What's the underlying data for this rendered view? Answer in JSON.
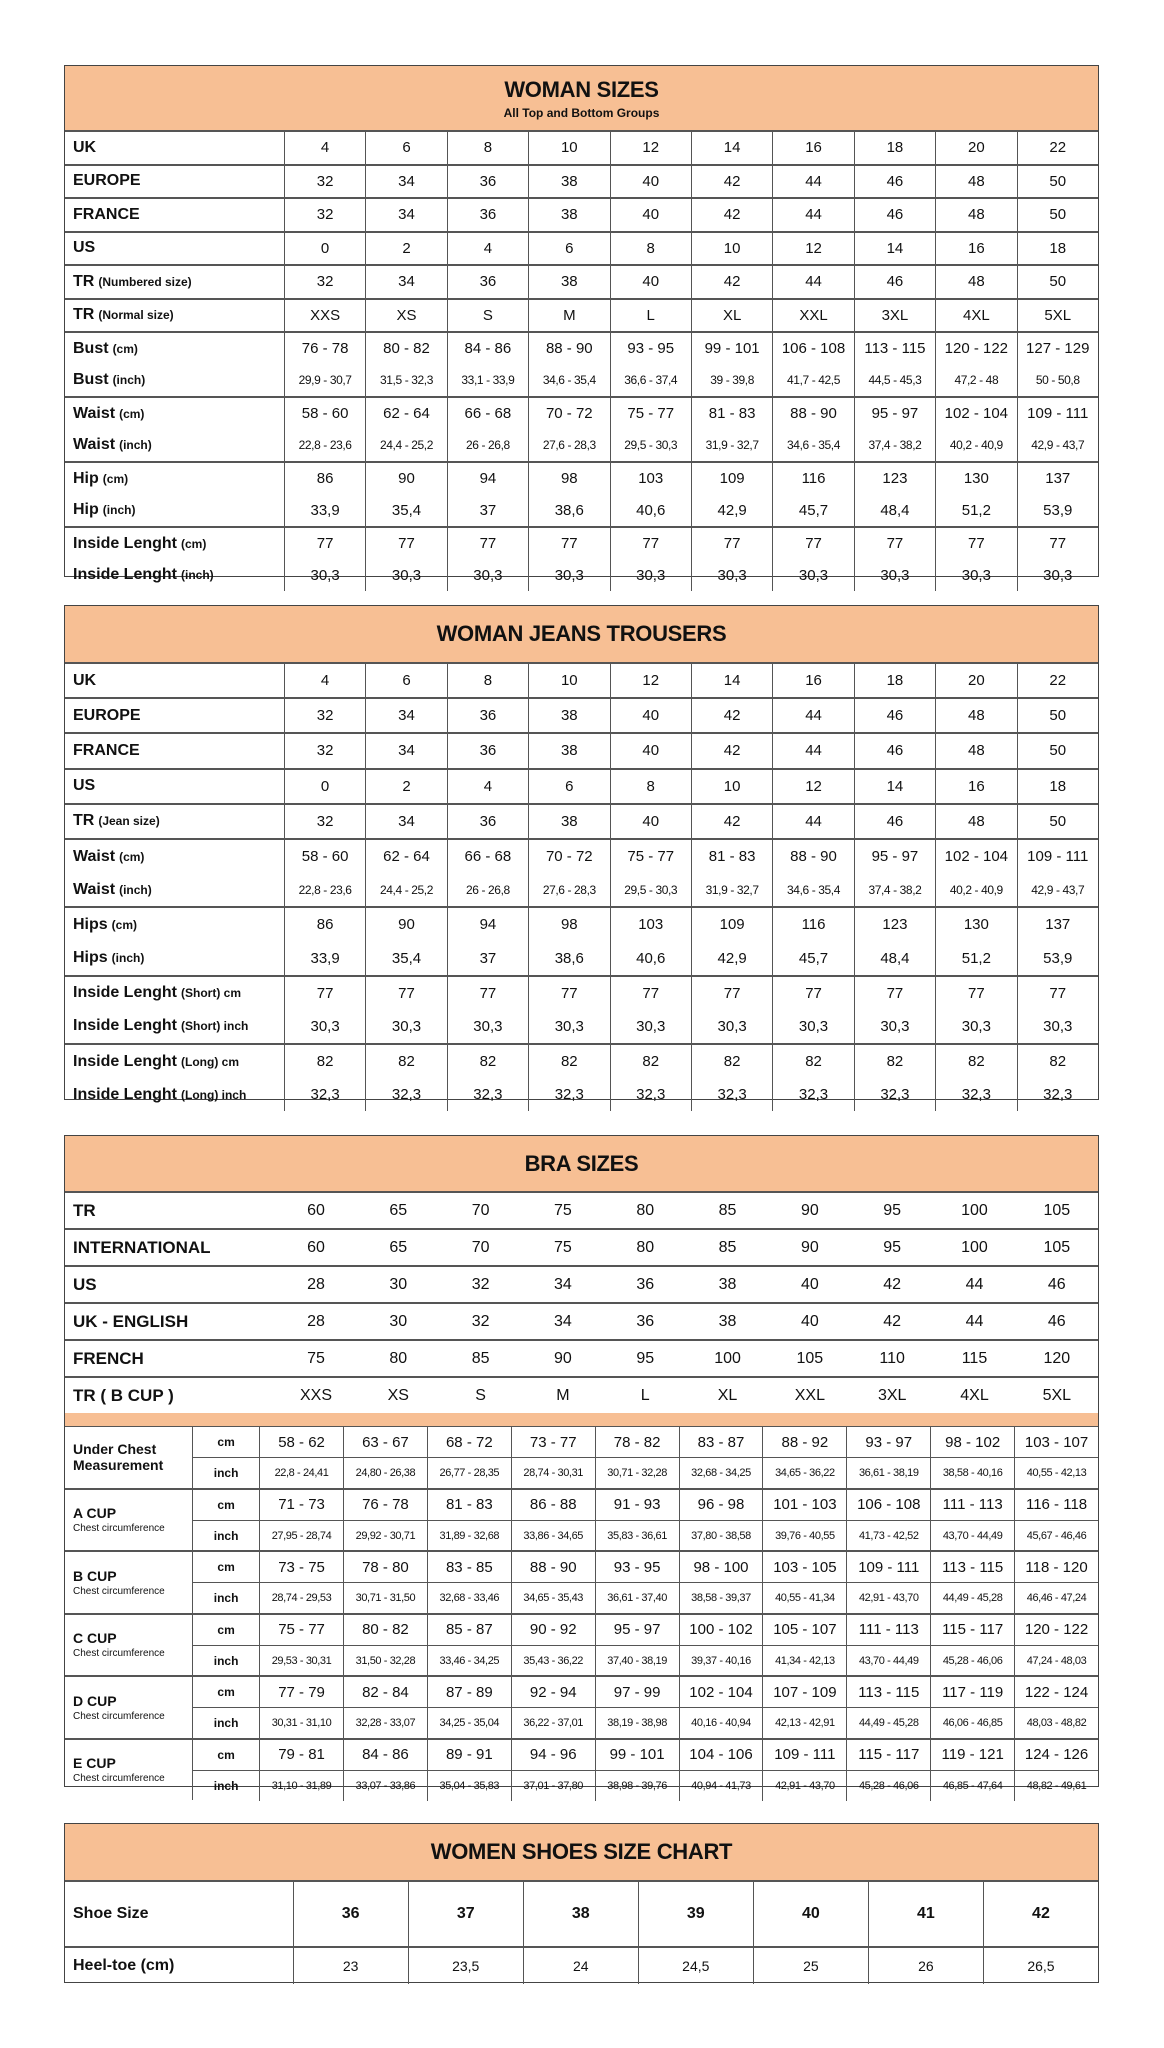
{
  "woman_sizes": {
    "title": "WOMAN SIZES",
    "subtitle": "All Top and Bottom Groups",
    "groups": [
      [
        {
          "label": "UK",
          "sub": "",
          "values": [
            "4",
            "6",
            "8",
            "10",
            "12",
            "14",
            "16",
            "18",
            "20",
            "22"
          ]
        }
      ],
      [
        {
          "label": "EUROPE",
          "sub": "",
          "values": [
            "32",
            "34",
            "36",
            "38",
            "40",
            "42",
            "44",
            "46",
            "48",
            "50"
          ]
        }
      ],
      [
        {
          "label": "FRANCE",
          "sub": "",
          "values": [
            "32",
            "34",
            "36",
            "38",
            "40",
            "42",
            "44",
            "46",
            "48",
            "50"
          ]
        }
      ],
      [
        {
          "label": "US",
          "sub": "",
          "values": [
            "0",
            "2",
            "4",
            "6",
            "8",
            "10",
            "12",
            "14",
            "16",
            "18"
          ]
        }
      ],
      [
        {
          "label": "TR",
          "sub": "(Numbered size)",
          "values": [
            "32",
            "34",
            "36",
            "38",
            "40",
            "42",
            "44",
            "46",
            "48",
            "50"
          ]
        }
      ],
      [
        {
          "label": "TR",
          "sub": "(Normal size)",
          "values": [
            "XXS",
            "XS",
            "S",
            "M",
            "L",
            "XL",
            "XXL",
            "3XL",
            "4XL",
            "5XL"
          ]
        }
      ],
      [
        {
          "label": "Bust",
          "sub": "(cm)",
          "values": [
            "76 - 78",
            "80 - 82",
            "84 - 86",
            "88 - 90",
            "93 - 95",
            "99 - 101",
            "106 - 108",
            "113 - 115",
            "120 - 122",
            "127 - 129"
          ]
        },
        {
          "label": "Bust",
          "sub": "(inch)",
          "small": true,
          "values": [
            "29,9 - 30,7",
            "31,5 - 32,3",
            "33,1 - 33,9",
            "34,6 - 35,4",
            "36,6 - 37,4",
            "39 - 39,8",
            "41,7 - 42,5",
            "44,5 - 45,3",
            "47,2 - 48",
            "50 - 50,8"
          ]
        }
      ],
      [
        {
          "label": "Waist",
          "sub": "(cm)",
          "values": [
            "58 - 60",
            "62 - 64",
            "66 - 68",
            "70 - 72",
            "75 - 77",
            "81 - 83",
            "88 - 90",
            "95 - 97",
            "102 - 104",
            "109 - 111"
          ]
        },
        {
          "label": "Waist",
          "sub": "(inch)",
          "small": true,
          "values": [
            "22,8 - 23,6",
            "24,4 - 25,2",
            "26 - 26,8",
            "27,6 - 28,3",
            "29,5 - 30,3",
            "31,9 - 32,7",
            "34,6 - 35,4",
            "37,4 - 38,2",
            "40,2 - 40,9",
            "42,9 - 43,7"
          ]
        }
      ],
      [
        {
          "label": "Hip",
          "sub": "(cm)",
          "values": [
            "86",
            "90",
            "94",
            "98",
            "103",
            "109",
            "116",
            "123",
            "130",
            "137"
          ]
        },
        {
          "label": "Hip",
          "sub": "(inch)",
          "values": [
            "33,9",
            "35,4",
            "37",
            "38,6",
            "40,6",
            "42,9",
            "45,7",
            "48,4",
            "51,2",
            "53,9"
          ]
        }
      ],
      [
        {
          "label": "Inside Lenght",
          "sub": "(cm)",
          "values": [
            "77",
            "77",
            "77",
            "77",
            "77",
            "77",
            "77",
            "77",
            "77",
            "77"
          ]
        },
        {
          "label": "Inside Lenght",
          "sub": "(inch)",
          "values": [
            "30,3",
            "30,3",
            "30,3",
            "30,3",
            "30,3",
            "30,3",
            "30,3",
            "30,3",
            "30,3",
            "30,3"
          ]
        }
      ]
    ]
  },
  "jeans": {
    "title": "WOMAN JEANS TROUSERS",
    "groups": [
      [
        {
          "label": "UK",
          "sub": "",
          "values": [
            "4",
            "6",
            "8",
            "10",
            "12",
            "14",
            "16",
            "18",
            "20",
            "22"
          ]
        }
      ],
      [
        {
          "label": "EUROPE",
          "sub": "",
          "values": [
            "32",
            "34",
            "36",
            "38",
            "40",
            "42",
            "44",
            "46",
            "48",
            "50"
          ]
        }
      ],
      [
        {
          "label": "FRANCE",
          "sub": "",
          "values": [
            "32",
            "34",
            "36",
            "38",
            "40",
            "42",
            "44",
            "46",
            "48",
            "50"
          ]
        }
      ],
      [
        {
          "label": "US",
          "sub": "",
          "values": [
            "0",
            "2",
            "4",
            "6",
            "8",
            "10",
            "12",
            "14",
            "16",
            "18"
          ]
        }
      ],
      [
        {
          "label": "TR",
          "sub": "(Jean size)",
          "values": [
            "32",
            "34",
            "36",
            "38",
            "40",
            "42",
            "44",
            "46",
            "48",
            "50"
          ]
        }
      ],
      [
        {
          "label": "Waist",
          "sub": "(cm)",
          "values": [
            "58 - 60",
            "62 - 64",
            "66 - 68",
            "70 - 72",
            "75 - 77",
            "81 - 83",
            "88 - 90",
            "95 - 97",
            "102 - 104",
            "109 - 111"
          ]
        },
        {
          "label": "Waist",
          "sub": "(inch)",
          "small": true,
          "values": [
            "22,8 - 23,6",
            "24,4 - 25,2",
            "26 - 26,8",
            "27,6 - 28,3",
            "29,5 - 30,3",
            "31,9 - 32,7",
            "34,6 - 35,4",
            "37,4 - 38,2",
            "40,2 - 40,9",
            "42,9 - 43,7"
          ]
        }
      ],
      [
        {
          "label": "Hips",
          "sub": "(cm)",
          "values": [
            "86",
            "90",
            "94",
            "98",
            "103",
            "109",
            "116",
            "123",
            "130",
            "137"
          ]
        },
        {
          "label": "Hips",
          "sub": "(inch)",
          "values": [
            "33,9",
            "35,4",
            "37",
            "38,6",
            "40,6",
            "42,9",
            "45,7",
            "48,4",
            "51,2",
            "53,9"
          ]
        }
      ],
      [
        {
          "label": "Inside Lenght",
          "sub": "(Short) cm",
          "values": [
            "77",
            "77",
            "77",
            "77",
            "77",
            "77",
            "77",
            "77",
            "77",
            "77"
          ]
        },
        {
          "label": "Inside Lenght",
          "sub": "(Short) inch",
          "values": [
            "30,3",
            "30,3",
            "30,3",
            "30,3",
            "30,3",
            "30,3",
            "30,3",
            "30,3",
            "30,3",
            "30,3"
          ]
        }
      ],
      [
        {
          "label": "Inside Lenght",
          "sub": "(Long) cm",
          "values": [
            "82",
            "82",
            "82",
            "82",
            "82",
            "82",
            "82",
            "82",
            "82",
            "82"
          ]
        },
        {
          "label": "Inside Lenght",
          "sub": "(Long) inch",
          "values": [
            "32,3",
            "32,3",
            "32,3",
            "32,3",
            "32,3",
            "32,3",
            "32,3",
            "32,3",
            "32,3",
            "32,3"
          ]
        }
      ]
    ]
  },
  "bra": {
    "title": "BRA SIZES",
    "rows": [
      {
        "label": "TR",
        "values": [
          "60",
          "65",
          "70",
          "75",
          "80",
          "85",
          "90",
          "95",
          "100",
          "105"
        ]
      },
      {
        "label": "INTERNATIONAL",
        "values": [
          "60",
          "65",
          "70",
          "75",
          "80",
          "85",
          "90",
          "95",
          "100",
          "105"
        ]
      },
      {
        "label": "US",
        "values": [
          "28",
          "30",
          "32",
          "34",
          "36",
          "38",
          "40",
          "42",
          "44",
          "46"
        ]
      },
      {
        "label": "UK - ENGLISH",
        "values": [
          "28",
          "30",
          "32",
          "34",
          "36",
          "38",
          "40",
          "42",
          "44",
          "46"
        ]
      },
      {
        "label": "FRENCH",
        "values": [
          "75",
          "80",
          "85",
          "90",
          "95",
          "100",
          "105",
          "110",
          "115",
          "120"
        ]
      },
      {
        "label": "TR ( B CUP )",
        "values": [
          "XXS",
          "XS",
          "S",
          "M",
          "L",
          "XL",
          "XXL",
          "3XL",
          "4XL",
          "5XL"
        ]
      }
    ],
    "cups": [
      {
        "label": "Under Chest Measurement",
        "caption": "",
        "cm_unit": "cm",
        "inch_unit": "inch",
        "cm": [
          "58 - 62",
          "63 - 67",
          "68 - 72",
          "73 - 77",
          "78 - 82",
          "83 - 87",
          "88 - 92",
          "93 - 97",
          "98 - 102",
          "103 - 107"
        ],
        "inch": [
          "22,8 - 24,41",
          "24,80 - 26,38",
          "26,77 - 28,35",
          "28,74 - 30,31",
          "30,71 - 32,28",
          "32,68 - 34,25",
          "34,65 - 36,22",
          "36,61 - 38,19",
          "38,58 - 40,16",
          "40,55 - 42,13"
        ]
      },
      {
        "label": "A CUP",
        "caption": "Chest circumference",
        "cm_unit": "cm",
        "inch_unit": "inch",
        "cm": [
          "71 - 73",
          "76 - 78",
          "81 - 83",
          "86 - 88",
          "91 - 93",
          "96 - 98",
          "101 - 103",
          "106 - 108",
          "111 - 113",
          "116 - 118"
        ],
        "inch": [
          "27,95 - 28,74",
          "29,92 - 30,71",
          "31,89 - 32,68",
          "33,86 - 34,65",
          "35,83 - 36,61",
          "37,80 - 38,58",
          "39,76 - 40,55",
          "41,73 - 42,52",
          "43,70 - 44,49",
          "45,67 - 46,46"
        ]
      },
      {
        "label": "B CUP",
        "caption": "Chest circumference",
        "cm_unit": "cm",
        "inch_unit": "inch",
        "cm": [
          "73 - 75",
          "78 - 80",
          "83 - 85",
          "88 - 90",
          "93 - 95",
          "98 - 100",
          "103 - 105",
          "109 - 111",
          "113 - 115",
          "118 - 120"
        ],
        "inch": [
          "28,74 - 29,53",
          "30,71 - 31,50",
          "32,68 - 33,46",
          "34,65 - 35,43",
          "36,61 - 37,40",
          "38,58 - 39,37",
          "40,55 - 41,34",
          "42,91 - 43,70",
          "44,49 - 45,28",
          "46,46 - 47,24"
        ]
      },
      {
        "label": "C CUP",
        "caption": "Chest circumference",
        "cm_unit": "cm",
        "inch_unit": "inch",
        "cm": [
          "75 - 77",
          "80 - 82",
          "85 - 87",
          "90 - 92",
          "95 - 97",
          "100 - 102",
          "105 - 107",
          "111 - 113",
          "115 - 117",
          "120 - 122"
        ],
        "inch": [
          "29,53 - 30,31",
          "31,50 - 32,28",
          "33,46 - 34,25",
          "35,43 - 36,22",
          "37,40 - 38,19",
          "39,37 - 40,16",
          "41,34 - 42,13",
          "43,70 - 44,49",
          "45,28 - 46,06",
          "47,24 - 48,03"
        ]
      },
      {
        "label": "D CUP",
        "caption": "Chest circumference",
        "cm_unit": "cm",
        "inch_unit": "inch",
        "cm": [
          "77 - 79",
          "82 - 84",
          "87 - 89",
          "92 - 94",
          "97 - 99",
          "102 - 104",
          "107 - 109",
          "113 - 115",
          "117 - 119",
          "122 - 124"
        ],
        "inch": [
          "30,31 - 31,10",
          "32,28 - 33,07",
          "34,25 - 35,04",
          "36,22 - 37,01",
          "38,19 - 38,98",
          "40,16 - 40,94",
          "42,13 - 42,91",
          "44,49 - 45,28",
          "46,06 - 46,85",
          "48,03 - 48,82"
        ]
      },
      {
        "label": "E CUP",
        "caption": "Chest circumference",
        "cm_unit": "cm",
        "inch_unit": "inch",
        "cm": [
          "79 - 81",
          "84 - 86",
          "89 - 91",
          "94 - 96",
          "99 - 101",
          "104 - 106",
          "109 - 111",
          "115 - 117",
          "119 - 121",
          "124 - 126"
        ],
        "inch": [
          "31,10 - 31,89",
          "33,07 - 33,86",
          "35,04 - 35,83",
          "37,01 - 37,80",
          "38,98 - 39,76",
          "40,94 - 41,73",
          "42,91 - 43,70",
          "45,28 - 46,06",
          "46,85 - 47,64",
          "48,82 - 49,61"
        ]
      }
    ]
  },
  "shoes": {
    "title": "WOMEN SHOES SIZE CHART",
    "rows": [
      {
        "label": "Shoe Size",
        "bold": true,
        "values": [
          "36",
          "37",
          "38",
          "39",
          "40",
          "41",
          "42"
        ]
      },
      {
        "label": "Heel-toe (cm)",
        "bold": false,
        "values": [
          "23",
          "23,5",
          "24",
          "24,5",
          "25",
          "26",
          "26,5"
        ]
      }
    ]
  },
  "colors": {
    "header_fill": "#f7bf94",
    "border": "#555555"
  }
}
